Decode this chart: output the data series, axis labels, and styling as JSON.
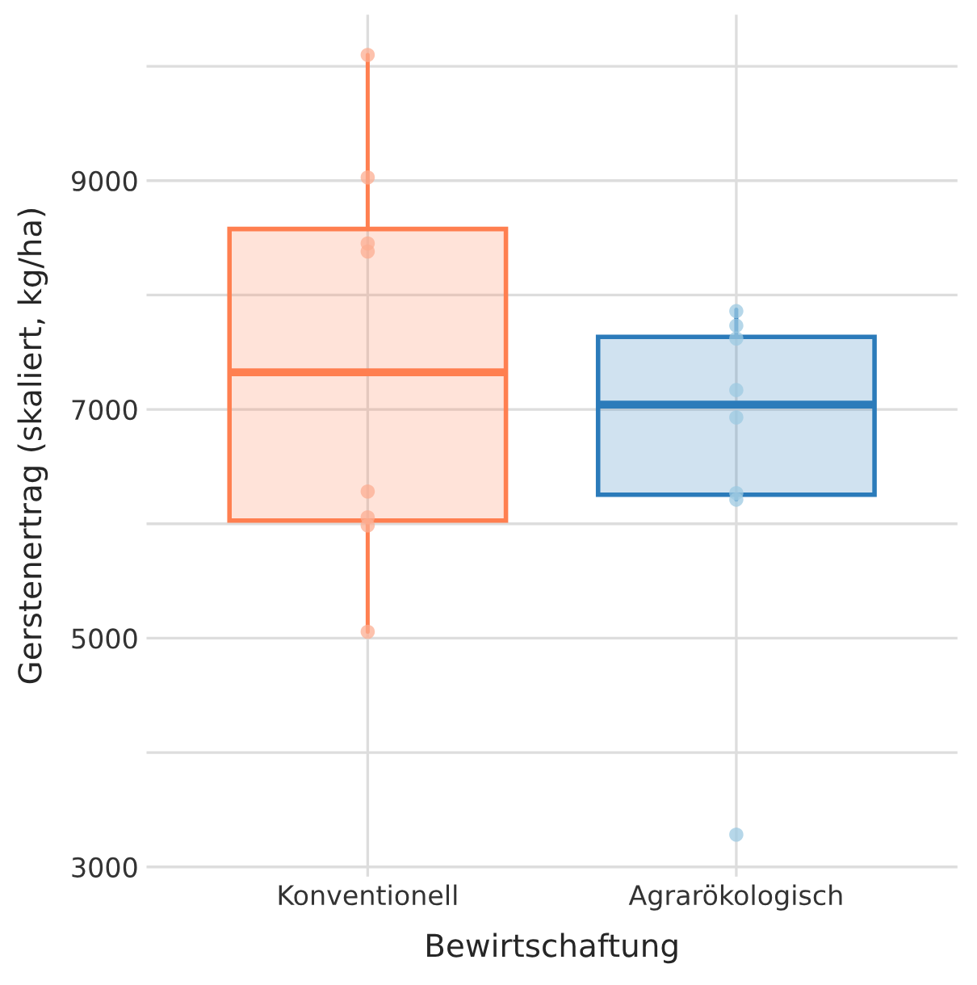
{
  "chart_data": {
    "type": "box",
    "xlabel": "Bewirtschaftung",
    "ylabel": "Gerstenertrag (skaliert, kg/ha)",
    "categories": [
      "Konventionell",
      "Agrarökologisch"
    ],
    "colors": [
      "#ff7f50",
      "#2b7bba"
    ],
    "boxes": [
      {
        "low": 5056,
        "q1": 6028,
        "median": 7324,
        "q3": 8577,
        "high": 10099
      },
      {
        "low": 6211,
        "q1": 6254,
        "median": 7042,
        "q3": 7634,
        "high": 7873
      }
    ],
    "series": [
      {
        "type": "scatter",
        "color": "#fcae91",
        "x": [
          "Konventionell",
          "Konventionell",
          "Konventionell",
          "Konventionell",
          "Konventionell",
          "Konventionell",
          "Konventionell",
          "Konventionell"
        ],
        "values": [
          10099,
          9028,
          8451,
          8380,
          6282,
          6056,
          5986,
          5056
        ]
      },
      {
        "type": "scatter",
        "color": "#9ecae1",
        "x": [
          "Agrarökologisch",
          "Agrarökologisch",
          "Agrarökologisch",
          "Agrarökologisch",
          "Agrarökologisch",
          "Agrarökologisch",
          "Agrarökologisch",
          "Agrarökologisch"
        ],
        "values": [
          7859,
          7732,
          7620,
          7169,
          6930,
          6268,
          6211,
          3282
        ]
      }
    ],
    "ylim": [
      2915,
      10450
    ],
    "yticks": [
      3000,
      {
        "value": 4000,
        "label": null
      },
      5000,
      {
        "value": 6000,
        "label": null
      },
      7000,
      {
        "value": 8000,
        "label": null
      },
      9000,
      {
        "value": 10000,
        "label": null
      }
    ],
    "grid": true,
    "marker": "circle"
  }
}
